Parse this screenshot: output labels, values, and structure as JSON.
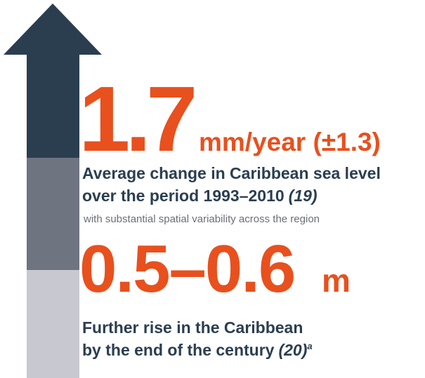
{
  "stats": [
    {
      "value": "1.7",
      "unit": "mm/year (±1.3)",
      "description": [
        "Average change in Caribbean sea level",
        "over the period 1993–2010"
      ],
      "reference": "(19)",
      "note": "with substantial spatial variability across the region"
    },
    {
      "value": "0.5–0.6",
      "unit": "m",
      "description": [
        "Further rise in the Caribbean",
        "by the end of the century"
      ],
      "reference": "(20)",
      "footnote": "a"
    }
  ]
}
